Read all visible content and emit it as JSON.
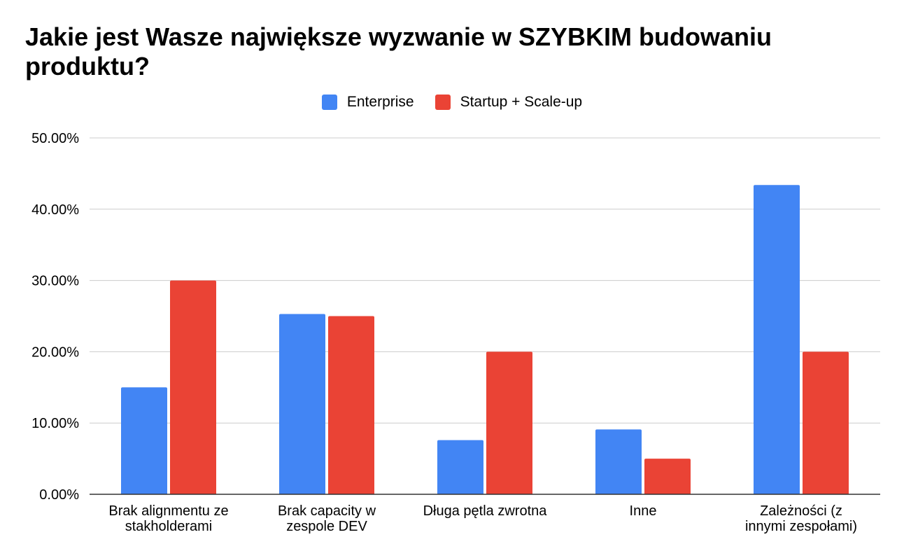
{
  "chart_data": {
    "type": "bar",
    "title": "Jakie jest Wasze największe wyzwanie w SZYBKIM budowaniu produktu?",
    "categories": [
      [
        "Brak alignmentu ze",
        "stakholderami"
      ],
      [
        "Brak capacity w",
        "zespole DEV"
      ],
      [
        "Długa pętla zwrotna"
      ],
      [
        "Inne"
      ],
      [
        "Zależności (z",
        "innymi zespołami)"
      ]
    ],
    "series": [
      {
        "name": "Enterprise",
        "color": "#4285f4",
        "values": [
          15.0,
          25.3,
          7.6,
          9.1,
          43.4
        ]
      },
      {
        "name": "Startup + Scale-up",
        "color": "#ea4335",
        "values": [
          30.0,
          25.0,
          20.0,
          5.0,
          20.0
        ]
      }
    ],
    "yticks": [
      "0.00%",
      "10.00%",
      "20.00%",
      "30.00%",
      "40.00%",
      "50.00%"
    ],
    "ylim": [
      0,
      50
    ],
    "grid": true,
    "legend_position": "top-center"
  }
}
